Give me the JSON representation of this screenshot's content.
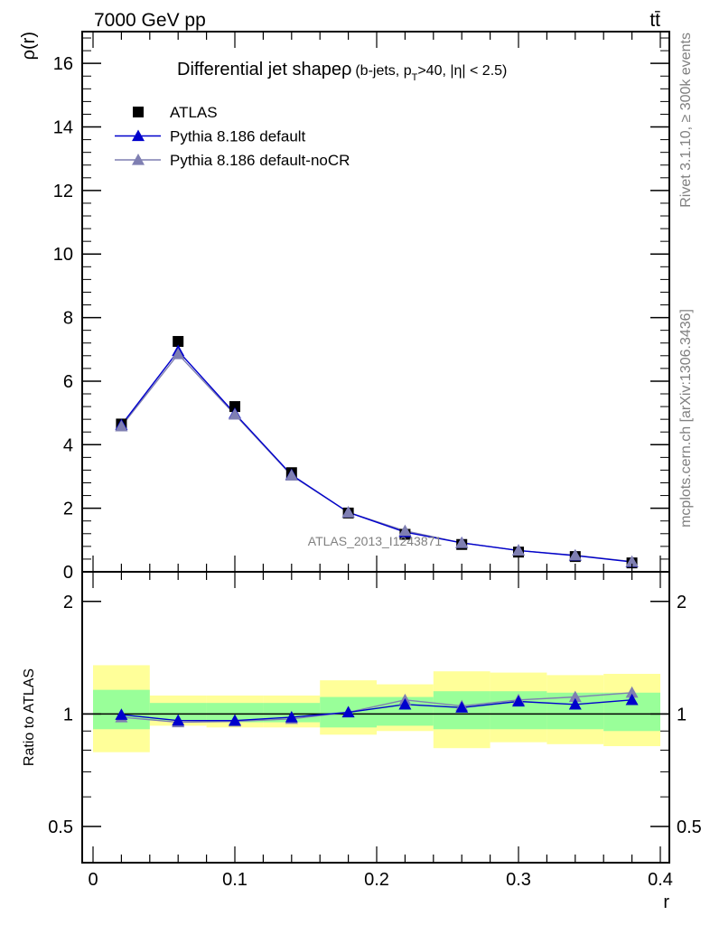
{
  "header": {
    "energy_label": "7000 GeV pp",
    "process_label": "tt̄"
  },
  "side_labels": {
    "rivet": "Rivet 3.1.10, ≥ 300k events",
    "mcplots": "mcplots.cern.ch [arXiv:1306.3436]"
  },
  "watermark": "ATLAS_2013_I1243871",
  "colors": {
    "atlas": "#000000",
    "default": "#0000cc",
    "default_noCR": "#7f7fb2",
    "band_1sigma": "#99ff99",
    "band_2sigma": "#ffff99"
  },
  "chart_data": [
    {
      "type": "scatter",
      "title_main": "Differential jet shapeρ",
      "title_sub": "(b-jets, p",
      "title_sub_T": "T",
      "title_sub_rest": ">40, |η| < 2.5)",
      "xlabel": "r",
      "ylabel": "ρ(r)",
      "xlim": [
        0,
        0.4
      ],
      "ylim": [
        0,
        17
      ],
      "y_ticks": [
        0,
        2,
        4,
        6,
        8,
        10,
        12,
        14,
        16
      ],
      "legend_position": "top-left",
      "series": [
        {
          "name": "ATLAS",
          "x": [
            0.02,
            0.06,
            0.1,
            0.14,
            0.18,
            0.22,
            0.26,
            0.3,
            0.34,
            0.38
          ],
          "y": [
            4.65,
            7.25,
            5.2,
            3.12,
            1.85,
            1.18,
            0.86,
            0.62,
            0.48,
            0.28
          ]
        },
        {
          "name": "Pythia 8.186 default",
          "x": [
            0.02,
            0.06,
            0.1,
            0.14,
            0.18,
            0.22,
            0.26,
            0.3,
            0.34,
            0.38
          ],
          "y": [
            4.62,
            6.95,
            4.98,
            3.05,
            1.87,
            1.25,
            0.91,
            0.67,
            0.51,
            0.31
          ]
        },
        {
          "name": "Pythia 8.186 default-noCR",
          "x": [
            0.02,
            0.06,
            0.1,
            0.14,
            0.18,
            0.22,
            0.26,
            0.3,
            0.34,
            0.38
          ],
          "y": [
            4.58,
            6.85,
            4.95,
            3.03,
            1.87,
            1.29,
            0.91,
            0.67,
            0.52,
            0.32
          ]
        }
      ]
    },
    {
      "type": "scatter",
      "xlabel": "r",
      "ylabel": "Ratio to ATLAS",
      "xlim": [
        0,
        0.4
      ],
      "ylim": [
        0.4,
        2.4
      ],
      "y_ticks": [
        {
          "value": 0.5,
          "label": "0.5"
        },
        {
          "value": 1,
          "label": "1"
        },
        {
          "value": 2,
          "label": "2"
        }
      ],
      "x_ticks": [
        {
          "value": 0,
          "label": "0"
        },
        {
          "value": 0.1,
          "label": "0.1"
        },
        {
          "value": 0.2,
          "label": "0.2"
        },
        {
          "value": 0.3,
          "label": "0.3"
        },
        {
          "value": 0.4,
          "label": "0.4"
        }
      ],
      "bands": {
        "edges": [
          0.0,
          0.04,
          0.08,
          0.12,
          0.16,
          0.2,
          0.24,
          0.28,
          0.32,
          0.36,
          0.4
        ],
        "sigma1": [
          [
            0.91,
            1.16
          ],
          [
            0.96,
            1.07
          ],
          [
            0.95,
            1.07
          ],
          [
            0.95,
            1.07
          ],
          [
            0.92,
            1.11
          ],
          [
            0.93,
            1.11
          ],
          [
            0.91,
            1.15
          ],
          [
            0.91,
            1.15
          ],
          [
            0.91,
            1.14
          ],
          [
            0.9,
            1.14
          ]
        ],
        "sigma2": [
          [
            0.79,
            1.35
          ],
          [
            0.93,
            1.12
          ],
          [
            0.92,
            1.12
          ],
          [
            0.92,
            1.12
          ],
          [
            0.88,
            1.23
          ],
          [
            0.9,
            1.2
          ],
          [
            0.81,
            1.3
          ],
          [
            0.84,
            1.29
          ],
          [
            0.83,
            1.27
          ],
          [
            0.82,
            1.28
          ]
        ]
      },
      "series": [
        {
          "name": "Pythia 8.186 default",
          "x": [
            0.02,
            0.06,
            0.1,
            0.14,
            0.18,
            0.22,
            0.26,
            0.3,
            0.34,
            0.38
          ],
          "y": [
            0.995,
            0.96,
            0.96,
            0.98,
            1.01,
            1.06,
            1.04,
            1.08,
            1.06,
            1.09
          ]
        },
        {
          "name": "Pythia 8.186 default-noCR",
          "x": [
            0.02,
            0.06,
            0.1,
            0.14,
            0.18,
            0.22,
            0.26,
            0.3,
            0.34,
            0.38
          ],
          "y": [
            0.98,
            0.95,
            0.955,
            0.97,
            1.01,
            1.09,
            1.05,
            1.09,
            1.11,
            1.14
          ]
        }
      ]
    }
  ]
}
